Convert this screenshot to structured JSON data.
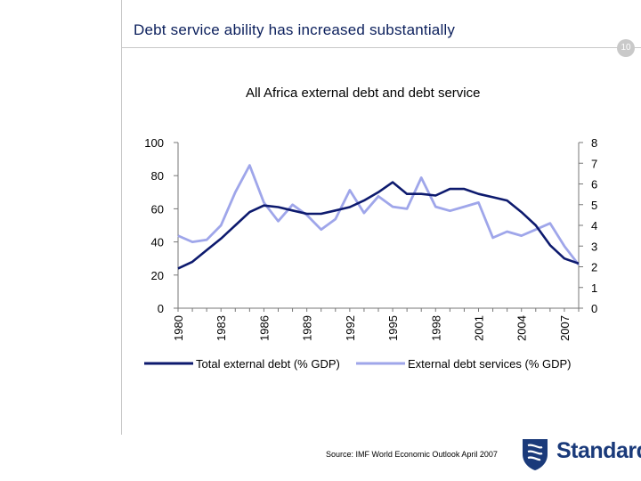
{
  "header": {
    "title": "Debt service ability has increased substantially",
    "page_number": "10"
  },
  "footer": {
    "source": "Source: IMF World Economic Outlook April 2007",
    "logo_text": "Standard"
  },
  "colors": {
    "title": "#0b1f5c",
    "total_debt": "#0d1a6e",
    "debt_service": "#9fa6ea",
    "axis": "#777777"
  },
  "chart_data": {
    "type": "line",
    "title": "All Africa external debt and debt service",
    "x": [
      1980,
      1981,
      1982,
      1983,
      1984,
      1985,
      1986,
      1987,
      1988,
      1989,
      1990,
      1991,
      1992,
      1993,
      1994,
      1995,
      1996,
      1997,
      1998,
      1999,
      2000,
      2001,
      2002,
      2003,
      2004,
      2005,
      2006,
      2007,
      2008
    ],
    "x_tick_labels": [
      "1980",
      "1983",
      "1986",
      "1989",
      "1992",
      "1995",
      "1998",
      "2001",
      "2004",
      "2007"
    ],
    "xlim": [
      1980,
      2008
    ],
    "y_left": {
      "ylim": [
        0,
        100
      ],
      "ticks": [
        "0",
        "20",
        "40",
        "60",
        "80",
        "100"
      ]
    },
    "y_right": {
      "ylim": [
        0,
        8
      ],
      "ticks": [
        "0",
        "1",
        "2",
        "3",
        "4",
        "5",
        "6",
        "7",
        "8"
      ]
    },
    "series": [
      {
        "name": "Total external debt (% GDP)",
        "axis": "left",
        "values": [
          24,
          28,
          35,
          42,
          50,
          58,
          62,
          61,
          59,
          57,
          57,
          59,
          61,
          65,
          70,
          76,
          69,
          69,
          68,
          72,
          72,
          69,
          67,
          65,
          58,
          50,
          38,
          30,
          27
        ]
      },
      {
        "name": "External debt services (% GDP)",
        "axis": "right",
        "values": [
          3.5,
          3.2,
          3.3,
          4.0,
          5.6,
          6.9,
          5.1,
          4.2,
          5.0,
          4.5,
          3.8,
          4.3,
          5.7,
          4.6,
          5.4,
          4.9,
          4.8,
          6.3,
          4.9,
          4.7,
          4.9,
          5.1,
          3.4,
          3.7,
          3.5,
          3.8,
          4.1,
          3.0,
          2.1
        ]
      }
    ],
    "legend_position": "bottom",
    "grid": false
  }
}
